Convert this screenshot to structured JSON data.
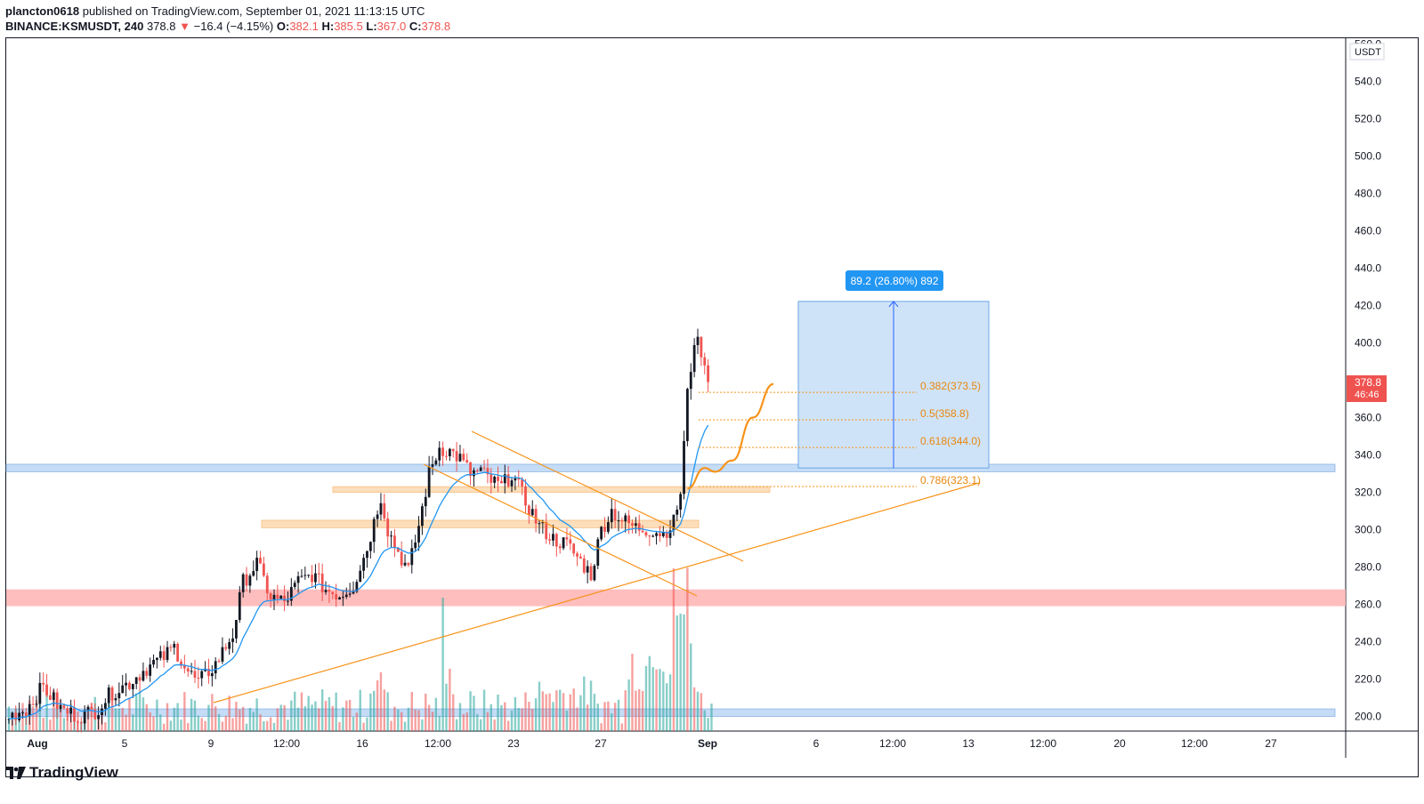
{
  "header": {
    "author": "plancton0618",
    "published_text": "published on TradingView.com, September 01, 2021 11:13:15 UTC",
    "symbol": "BINANCE:KSMUSDT, 240",
    "last": "378.8",
    "down_arrow": "▼",
    "change": "−16.4 (−4.15%)",
    "o_label": "O:",
    "o_value": "382.1",
    "h_label": "H:",
    "h_value": "385.5",
    "l_label": "L:",
    "l_value": "367.0",
    "c_label": "C:",
    "c_value": "378.8"
  },
  "footer": {
    "brand": "TradingView",
    "logo_icon": "tradingview-logo-icon"
  },
  "colors": {
    "up": "#131722",
    "down": "#ef5350",
    "ema": "#2196f3",
    "orange": "#f7931a",
    "vol_up": "#26a69a",
    "vol_down": "#ef5350",
    "blue_zone": "#bbd6f5",
    "red_zone": "#ffb3b3",
    "measure": "#cfe3f8"
  },
  "chart_data": {
    "type": "candlestick",
    "y_axis": {
      "unit": "USDT",
      "ticks": [
        "560.0",
        "540.0",
        "520.0",
        "500.0",
        "480.0",
        "460.0",
        "440.0",
        "420.0",
        "400.0",
        "380.0",
        "360.0",
        "340.0",
        "320.0",
        "300.0",
        "280.0",
        "260.0",
        "240.0",
        "220.0",
        "200.0"
      ],
      "range": [
        195,
        562
      ]
    },
    "x_axis": {
      "ticks": [
        "Aug",
        "5",
        "9",
        "12:00",
        "16",
        "12:00",
        "23",
        "27",
        "Sep",
        "6",
        "12:00",
        "13",
        "12:00",
        "20",
        "12:00",
        "27"
      ]
    },
    "price_label": {
      "value": "378.8",
      "countdown": "46:46"
    },
    "ohlc_anchor_closes": [
      [
        0,
        200
      ],
      [
        5,
        204
      ],
      [
        10,
        216
      ],
      [
        15,
        204
      ],
      [
        20,
        200
      ],
      [
        25,
        203
      ],
      [
        30,
        213
      ],
      [
        35,
        218
      ],
      [
        40,
        226
      ],
      [
        45,
        232
      ],
      [
        48,
        237
      ],
      [
        52,
        224
      ],
      [
        55,
        218
      ],
      [
        60,
        228
      ],
      [
        65,
        244
      ],
      [
        68,
        272
      ],
      [
        72,
        282
      ],
      [
        76,
        264
      ],
      [
        80,
        261
      ],
      [
        84,
        272
      ],
      [
        88,
        276
      ],
      [
        92,
        268
      ],
      [
        96,
        265
      ],
      [
        100,
        270
      ],
      [
        104,
        290
      ],
      [
        108,
        318
      ],
      [
        110,
        300
      ],
      [
        113,
        288
      ],
      [
        116,
        278
      ],
      [
        119,
        302
      ],
      [
        122,
        330
      ],
      [
        125,
        344
      ],
      [
        128,
        342
      ],
      [
        131,
        338
      ],
      [
        134,
        330
      ],
      [
        137,
        331
      ],
      [
        140,
        326
      ],
      [
        143,
        323
      ],
      [
        146,
        330
      ],
      [
        150,
        315
      ],
      [
        154,
        302
      ],
      [
        158,
        295
      ],
      [
        162,
        292
      ],
      [
        166,
        283
      ],
      [
        169,
        276
      ],
      [
        172,
        300
      ],
      [
        175,
        310
      ],
      [
        178,
        305
      ],
      [
        182,
        301
      ],
      [
        186,
        300
      ],
      [
        190,
        298
      ],
      [
        193,
        304
      ],
      [
        195,
        320
      ],
      [
        197,
        372
      ],
      [
        199,
        402
      ],
      [
        201,
        396
      ],
      [
        202,
        385
      ],
      [
        203,
        379
      ]
    ],
    "volume_bars": "synthetic series, tall bars near 16 (~205 level scale), 29–31 Aug spike",
    "zones": [
      {
        "name": "blue-resistance",
        "low": 331,
        "high": 335
      },
      {
        "name": "red-support",
        "low": 259,
        "high": 268
      },
      {
        "name": "blue-bottom",
        "low": 200,
        "high": 204
      },
      {
        "name": "orange-zone-upper",
        "low": 320,
        "high": 323
      },
      {
        "name": "orange-zone-lower",
        "low": 301,
        "high": 305
      }
    ],
    "fibonacci": [
      {
        "label": "0.382(373.5)",
        "value": 373.5
      },
      {
        "label": "0.5(358.8)",
        "value": 358.8
      },
      {
        "label": "0.618(344.0)",
        "value": 344.0
      },
      {
        "label": "0.786(323.1)",
        "value": 323.1
      }
    ],
    "measure": {
      "label": "89.2 (26.80%) 892",
      "from": 333,
      "to": 422.2
    },
    "projection_path": [
      [
        197,
        322
      ],
      [
        202,
        333
      ],
      [
        205,
        331
      ],
      [
        210,
        337
      ],
      [
        216,
        360
      ],
      [
        222,
        378
      ]
    ]
  }
}
